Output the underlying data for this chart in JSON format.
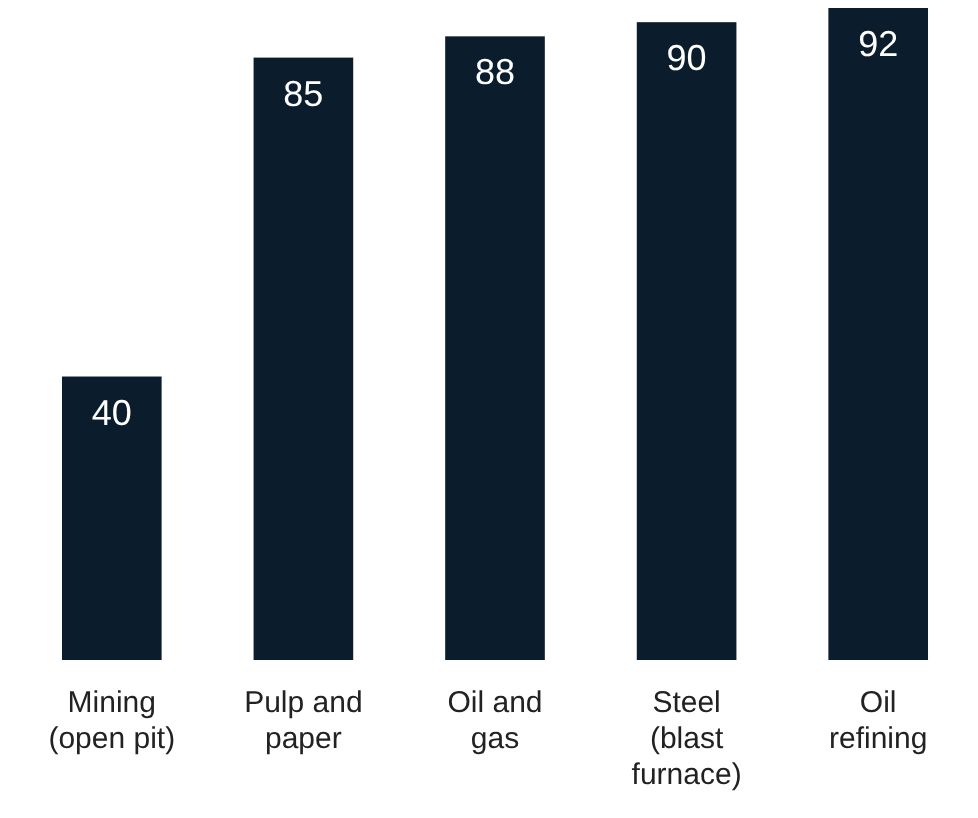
{
  "chart_data": {
    "type": "bar",
    "categories": [
      "Mining (open pit)",
      "Pulp and paper",
      "Oil and gas",
      "Steel (blast furnace)",
      "Oil refining"
    ],
    "values": [
      40,
      85,
      88,
      90,
      92
    ],
    "color": "#0b1c2c",
    "data_labels": true
  }
}
